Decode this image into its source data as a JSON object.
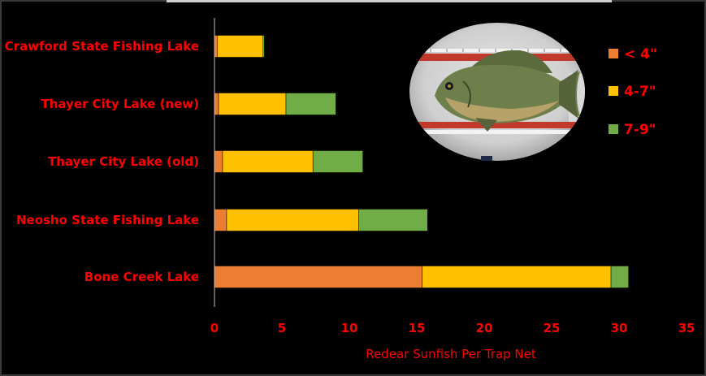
{
  "chart_data": {
    "type": "bar",
    "orientation": "horizontal",
    "stacked": true,
    "categories": [
      "Crawford State Fishing Lake",
      "Thayer City Lake (new)",
      "Thayer City Lake (old)",
      "Neosho State Fishing Lake",
      "Bone Creek Lake"
    ],
    "series": [
      {
        "name": "< 4\"",
        "color": "#ED7D31",
        "values": [
          0.2,
          0.3,
          0.6,
          0.9,
          15.4
        ]
      },
      {
        "name": "4-7\"",
        "color": "#FFC000",
        "values": [
          3.4,
          5.0,
          6.7,
          9.8,
          14.0
        ]
      },
      {
        "name": "7-9\"",
        "color": "#70AD47",
        "values": [
          0.1,
          3.7,
          3.7,
          5.1,
          1.3
        ]
      }
    ],
    "xlabel": "Redear Sunfish Per Trap Net",
    "xlim": [
      0,
      35
    ],
    "xticks": [
      0,
      5,
      10,
      15,
      20,
      25,
      30,
      35
    ],
    "legend_position": "right",
    "grid": false
  }
}
